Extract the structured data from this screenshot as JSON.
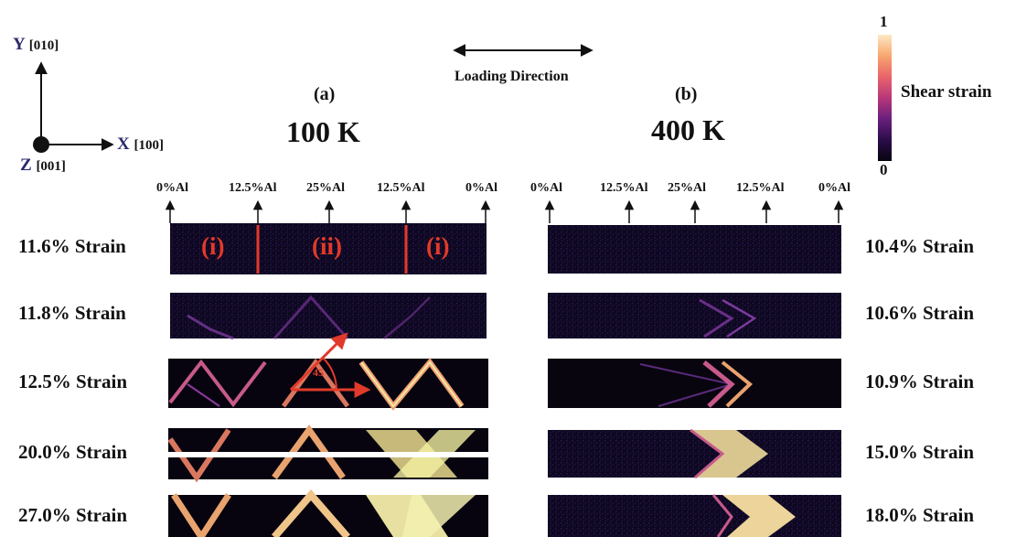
{
  "axes": {
    "y_label": "Y",
    "y_dir": "[010]",
    "x_label": "X",
    "x_dir": "[100]",
    "z_label": "Z",
    "z_dir": "[001]"
  },
  "loading_direction": "Loading Direction",
  "panels": [
    {
      "id": "(a)",
      "temperature": "100 K",
      "compositions": [
        "0%Al",
        "12.5%Al",
        "25%Al",
        "12.5%Al",
        "0%Al"
      ],
      "zones": [
        "(i)",
        "(ii)",
        "(i)"
      ],
      "angle_label": "45",
      "strains": [
        "11.6% Strain",
        "11.8% Strain",
        "12.5% Strain",
        "20.0% Strain",
        "27.0% Strain"
      ]
    },
    {
      "id": "(b)",
      "temperature": "400 K",
      "compositions": [
        "0%Al",
        "12.5%Al",
        "25%Al",
        "12.5%Al",
        "0%Al"
      ],
      "strains": [
        "10.4% Strain",
        "10.6% Strain",
        "10.9% Strain",
        "15.0% Strain",
        "18.0% Strain"
      ]
    }
  ],
  "colorbar": {
    "title": "Shear strain",
    "max_label": "1",
    "min_label": "0",
    "colors": [
      "#06040f",
      "#2b0d4a",
      "#6a1f7c",
      "#b8377a",
      "#e9646a",
      "#f8a66f",
      "#fde8c3"
    ]
  },
  "colors": {
    "strip_dark": "#0b0718",
    "strip_mid": "#2a1245",
    "band_purple": "#8a3b9c",
    "band_orange": "#f0a070",
    "band_yellow": "#f2f0a0",
    "annotation_red": "#e23a2a"
  }
}
